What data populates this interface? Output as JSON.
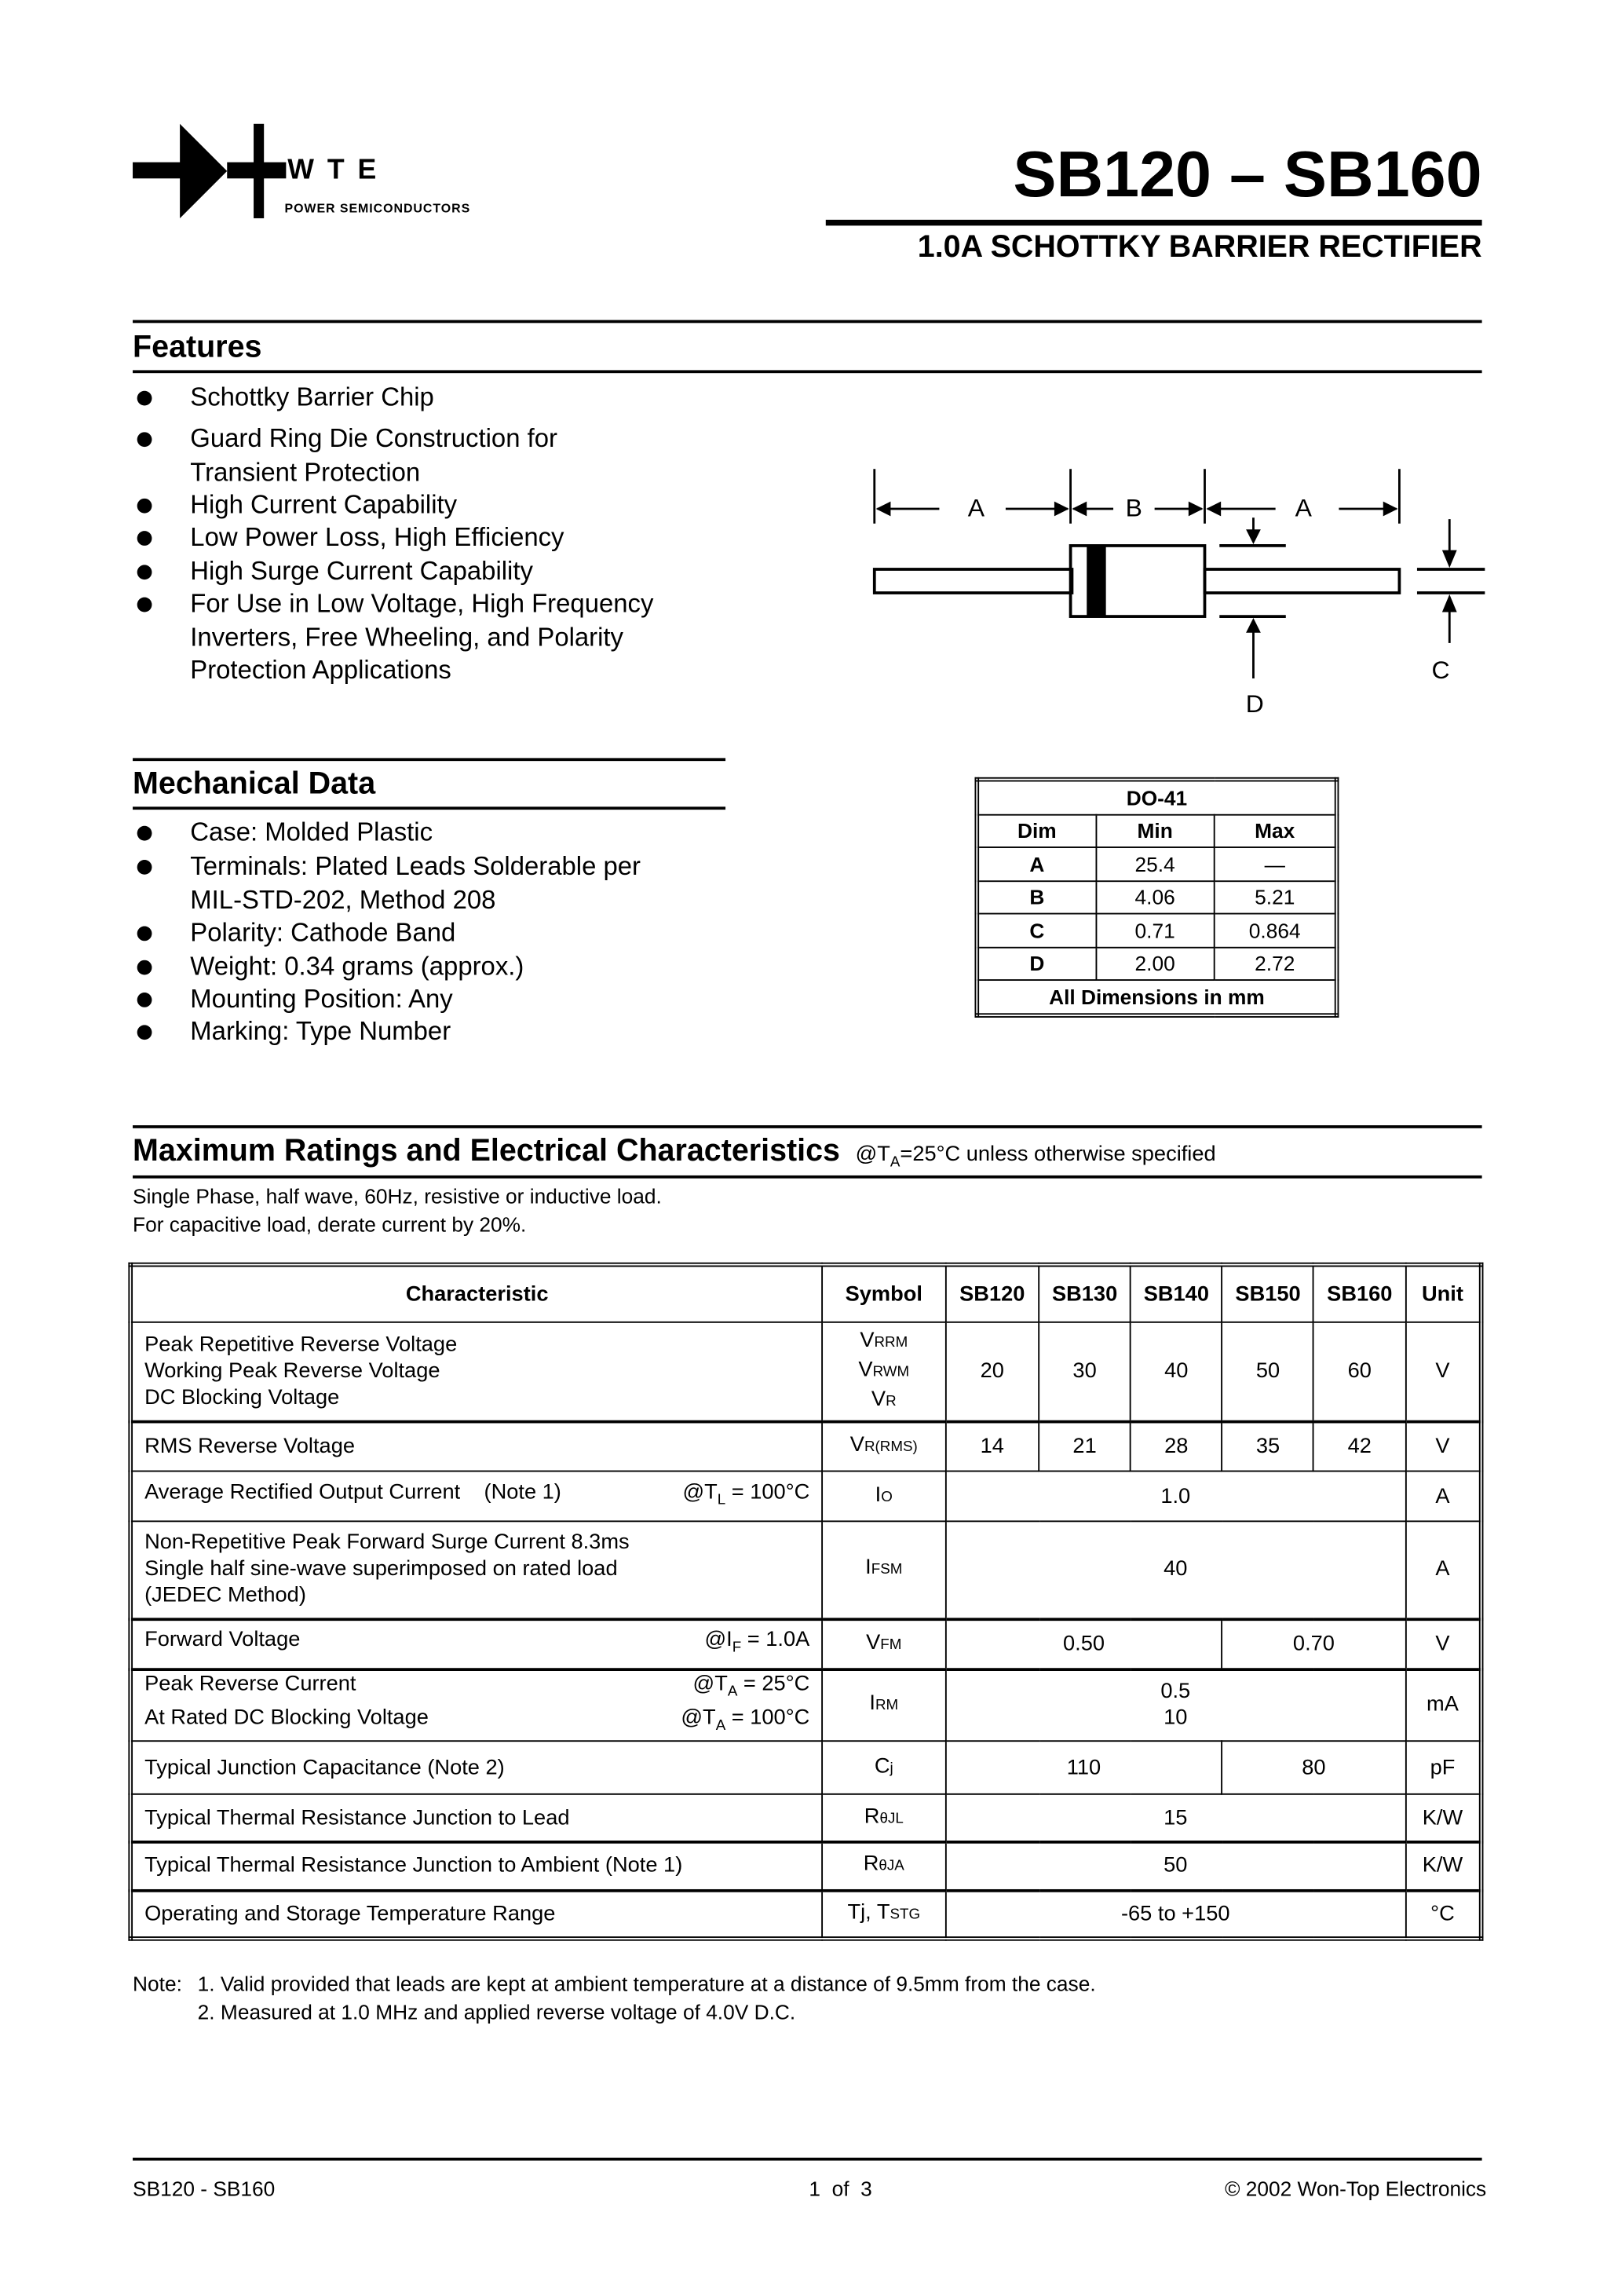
{
  "header": {
    "logo_text": "WTE",
    "logo_sub": "POWER SEMICONDUCTORS",
    "title": "SB120 – SB160",
    "subtitle": "1.0A SCHOTTKY BARRIER RECTIFIER"
  },
  "features": {
    "heading": "Features",
    "items": [
      [
        "Schottky Barrier Chip"
      ],
      [
        "Guard Ring Die Construction for",
        "Transient Protection"
      ],
      [
        "High Current Capability"
      ],
      [
        "Low Power Loss, High Efficiency"
      ],
      [
        "High Surge Current Capability"
      ],
      [
        "For Use in Low Voltage, High Frequency",
        "Inverters, Free Wheeling, and Polarity",
        "Protection Applications"
      ]
    ]
  },
  "diagram": {
    "labels": {
      "a1": "A",
      "b": "B",
      "a2": "A",
      "c": "C",
      "d": "D"
    }
  },
  "mechanical": {
    "heading": "Mechanical Data",
    "items": [
      [
        "Case: Molded Plastic"
      ],
      [
        "Terminals: Plated Leads Solderable per",
        "MIL-STD-202, Method 208"
      ],
      [
        "Polarity: Cathode Band"
      ],
      [
        "Weight: 0.34 grams (approx.)"
      ],
      [
        "Mounting Position: Any"
      ],
      [
        "Marking: Type Number"
      ]
    ]
  },
  "dim_table": {
    "title": "DO-41",
    "headers": [
      "Dim",
      "Min",
      "Max"
    ],
    "rows": [
      [
        "A",
        "25.4",
        "—"
      ],
      [
        "B",
        "4.06",
        "5.21"
      ],
      [
        "C",
        "0.71",
        "0.864"
      ],
      [
        "D",
        "2.00",
        "2.72"
      ]
    ],
    "footer": "All Dimensions in mm"
  },
  "ratings": {
    "heading": "Maximum Ratings and Electrical Characteristics",
    "condition_pre": "@T",
    "condition_sub": "A",
    "condition_post": "=25°C unless otherwise specified",
    "note1": "Single Phase, half wave, 60Hz, resistive or inductive load.",
    "note2": "For capacitive load, derate current by 20%.",
    "headers": [
      "Characteristic",
      "Symbol",
      "SB120",
      "SB130",
      "SB140",
      "SB150",
      "SB160",
      "Unit"
    ],
    "rows": {
      "vrrm": {
        "c": [
          "Peak Repetitive Reverse Voltage",
          "Working Peak Reverse Voltage",
          "DC Blocking Voltage"
        ],
        "s": [
          "V",
          "RRM",
          "V",
          "RWM",
          "V",
          "R"
        ],
        "v": [
          "20",
          "30",
          "40",
          "50",
          "60"
        ],
        "u": "V"
      },
      "vrms": {
        "c": "RMS Reverse Voltage",
        "s": [
          "V",
          "R(RMS)"
        ],
        "v": [
          "14",
          "21",
          "28",
          "35",
          "42"
        ],
        "u": "V"
      },
      "io": {
        "c": "Average Rectified Output Current    (Note 1)",
        "cond": [
          "@T",
          "L",
          " = 100°C"
        ],
        "s": [
          "I",
          "O"
        ],
        "v": "1.0",
        "u": "A"
      },
      "ifsm": {
        "c": [
          "Non-Repetitive Peak Forward Surge Current 8.3ms",
          "Single half sine-wave superimposed on rated load",
          "(JEDEC Method)"
        ],
        "s": [
          "I",
          "FSM"
        ],
        "v": "40",
        "u": "A"
      },
      "vfm": {
        "c": "Forward Voltage",
        "cond": [
          "@I",
          "F",
          " = 1.0A"
        ],
        "s": [
          "V",
          "FM"
        ],
        "v": [
          "0.50",
          "0.70"
        ],
        "u": "V"
      },
      "irm": {
        "c": [
          "Peak Reverse Current",
          "At Rated DC Blocking Voltage"
        ],
        "cond": [
          [
            "@T",
            "A",
            " = 25°C"
          ],
          [
            "@T",
            "A",
            " = 100°C"
          ]
        ],
        "s": [
          "I",
          "RM"
        ],
        "v": [
          "0.5",
          "10"
        ],
        "u": "mA"
      },
      "cj": {
        "c": "Typical Junction Capacitance (Note 2)",
        "s": [
          "C",
          "j"
        ],
        "v": [
          "110",
          "80"
        ],
        "u": "pF"
      },
      "rjl": {
        "c": "Typical Thermal Resistance Junction to Lead",
        "s": [
          "R",
          "θJL"
        ],
        "v": "15",
        "u": "K/W"
      },
      "rja": {
        "c": "Typical Thermal Resistance Junction to Ambient (Note 1)",
        "s": [
          "R",
          "θJA"
        ],
        "v": "50",
        "u": "K/W"
      },
      "tj": {
        "c": "Operating and Storage Temperature Range",
        "s": [
          "Tj, T",
          "STG"
        ],
        "v": "-65 to +150",
        "u": "°C"
      }
    }
  },
  "notes": {
    "label": "Note:",
    "n1": "1. Valid provided that leads are kept at ambient temperature at a distance of 9.5mm from the case.",
    "n2": "2. Measured at 1.0 MHz and applied reverse voltage of 4.0V D.C."
  },
  "footer": {
    "left": "SB120 - SB160",
    "center": "1  of  3",
    "right": "© 2002 Won-Top Electronics"
  }
}
